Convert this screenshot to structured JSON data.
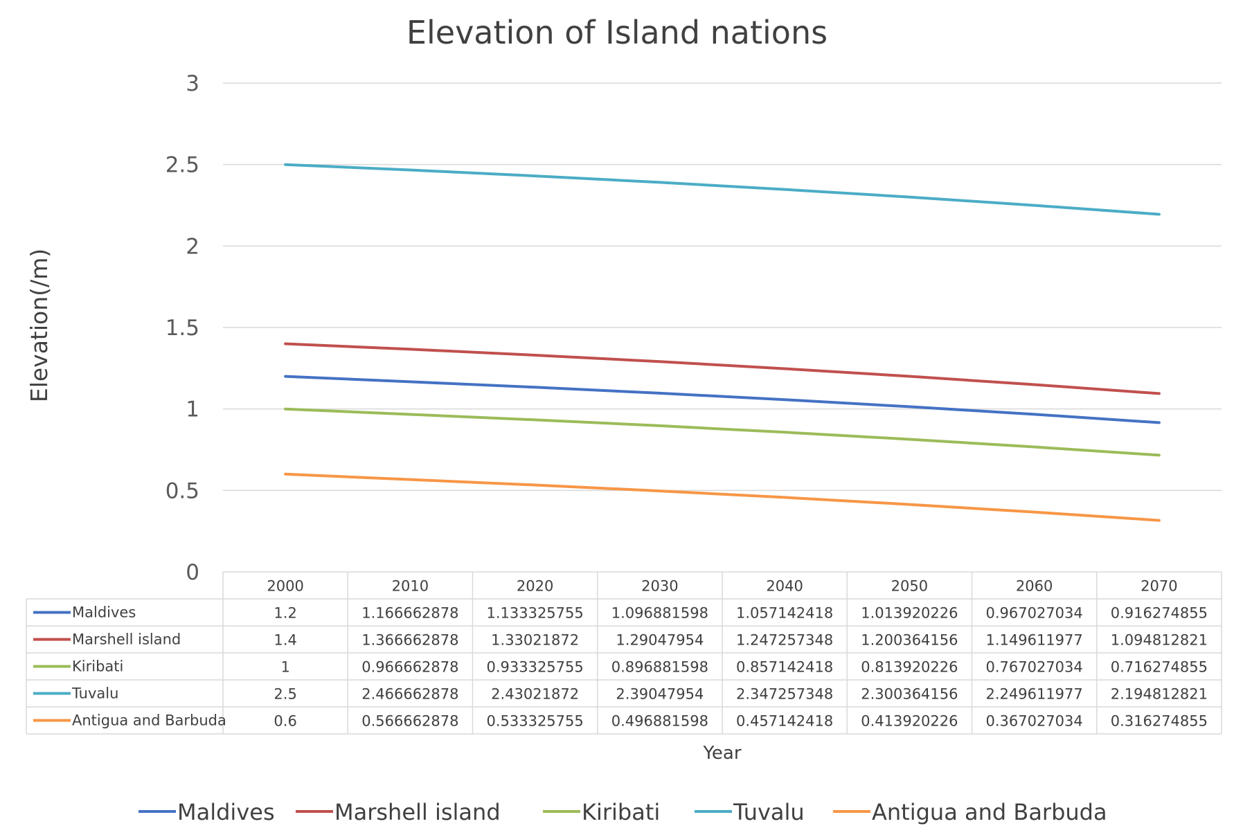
{
  "chart_data": {
    "type": "line",
    "title": "Elevation of Island nations",
    "xlabel": "Year",
    "ylabel": "Elevation(/m)",
    "ylim": [
      0,
      3
    ],
    "yticks": [
      0,
      0.5,
      1,
      1.5,
      2,
      2.5,
      3
    ],
    "ytick_labels": [
      "0",
      "0.5",
      "1",
      "1.5",
      "2",
      "2.5",
      "3"
    ],
    "grid": true,
    "legend_position": "bottom",
    "data_table": true,
    "categories": [
      "2000",
      "2010",
      "2020",
      "2030",
      "2040",
      "2050",
      "2060",
      "2070"
    ],
    "series": [
      {
        "name": "Maldives",
        "color": "#4472C4",
        "values": [
          1.2,
          1.166662878,
          1.133325755,
          1.096881598,
          1.057142418,
          1.013920226,
          0.967027034,
          0.916274855
        ],
        "value_labels": [
          "1.2",
          "1.166662878",
          "1.133325755",
          "1.096881598",
          "1.057142418",
          "1.013920226",
          "0.967027034",
          "0.916274855"
        ]
      },
      {
        "name": "Marshell island",
        "color": "#C0504D",
        "values": [
          1.4,
          1.366662878,
          1.33021872,
          1.29047954,
          1.247257348,
          1.200364156,
          1.149611977,
          1.094812821
        ],
        "value_labels": [
          "1.4",
          "1.366662878",
          "1.33021872",
          "1.29047954",
          "1.247257348",
          "1.200364156",
          "1.149611977",
          "1.094812821"
        ]
      },
      {
        "name": "Kiribati",
        "color": "#9BBB59",
        "values": [
          1,
          0.966662878,
          0.933325755,
          0.896881598,
          0.857142418,
          0.813920226,
          0.767027034,
          0.716274855
        ],
        "value_labels": [
          "1",
          "0.966662878",
          "0.933325755",
          "0.896881598",
          "0.857142418",
          "0.813920226",
          "0.767027034",
          "0.716274855"
        ]
      },
      {
        "name": "Tuvalu",
        "color": "#4BACC6",
        "values": [
          2.5,
          2.466662878,
          2.43021872,
          2.39047954,
          2.347257348,
          2.300364156,
          2.249611977,
          2.194812821
        ],
        "value_labels": [
          "2.5",
          "2.466662878",
          "2.43021872",
          "2.39047954",
          "2.347257348",
          "2.300364156",
          "2.249611977",
          "2.194812821"
        ]
      },
      {
        "name": "Antigua and Barbuda",
        "color": "#F79646",
        "values": [
          0.6,
          0.566662878,
          0.533325755,
          0.496881598,
          0.457142418,
          0.413920226,
          0.367027034,
          0.316274855
        ],
        "value_labels": [
          "0.6",
          "0.566662878",
          "0.533325755",
          "0.496881598",
          "0.457142418",
          "0.413920226",
          "0.367027034",
          "0.316274855"
        ]
      }
    ]
  }
}
